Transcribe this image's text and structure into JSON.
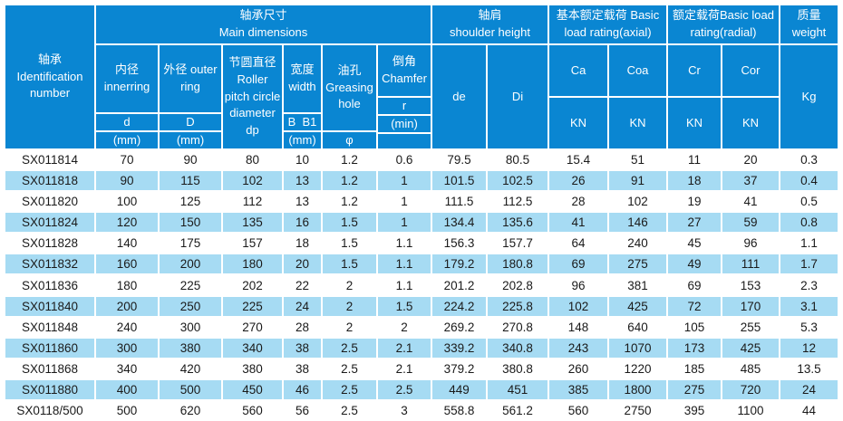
{
  "colors": {
    "header_blue": "#0a86d2",
    "stripe_blue": "#a6dbf3",
    "body_text": "#1a1a1a"
  },
  "header": {
    "id_column": "轴承 Identification number",
    "groups": {
      "main_zh": "轴承尺寸",
      "main_en": "Main dimensions",
      "shoulder_zh": "轴肩",
      "shoulder_en": "shoulder height",
      "axial": "基本额定载荷 Basic load rating(axial)",
      "radial": "额定载荷Basic load rating(radial)",
      "weight_zh": "质量",
      "weight_en": "weight"
    },
    "columns": {
      "inner_name": "内径 innerring",
      "inner_symbol": "d",
      "inner_unit": "(mm)",
      "outer_name": "外径 outer ring",
      "outer_symbol": "D",
      "outer_unit": "(mm)",
      "pitch_name": "节圆直径 Roller pitch circle diameter dp",
      "width_name": "宽度 width",
      "width_symbol": "B  B1",
      "width_unit": "(mm)",
      "grease_name": "油孔 Greasing hole",
      "grease_symbol": "φ",
      "chamfer_name": "倒角 Chamfer",
      "chamfer_symbol": "r",
      "chamfer_unit": "(min)",
      "de": "de",
      "di": "Di",
      "ca_symbol": "Ca",
      "ca_unit": "KN",
      "coa_symbol": "Coa",
      "coa_unit": "KN",
      "cr_symbol": "Cr",
      "cr_unit": "KN",
      "cor_symbol": "Cor",
      "cor_unit": "KN",
      "kg": "Kg"
    }
  },
  "rows": [
    [
      "SX011814",
      "70",
      "90",
      "80",
      "10",
      "1.2",
      "0.6",
      "79.5",
      "80.5",
      "15.4",
      "51",
      "11",
      "20",
      "0.3"
    ],
    [
      "SX011818",
      "90",
      "115",
      "102",
      "13",
      "1.2",
      "1",
      "101.5",
      "102.5",
      "26",
      "91",
      "18",
      "37",
      "0.4"
    ],
    [
      "SX011820",
      "100",
      "125",
      "112",
      "13",
      "1.2",
      "1",
      "111.5",
      "112.5",
      "28",
      "102",
      "19",
      "41",
      "0.5"
    ],
    [
      "SX011824",
      "120",
      "150",
      "135",
      "16",
      "1.5",
      "1",
      "134.4",
      "135.6",
      "41",
      "146",
      "27",
      "59",
      "0.8"
    ],
    [
      "SX011828",
      "140",
      "175",
      "157",
      "18",
      "1.5",
      "1.1",
      "156.3",
      "157.7",
      "64",
      "240",
      "45",
      "96",
      "1.1"
    ],
    [
      "SX011832",
      "160",
      "200",
      "180",
      "20",
      "1.5",
      "1.1",
      "179.2",
      "180.8",
      "69",
      "275",
      "49",
      "111",
      "1.7"
    ],
    [
      "SX011836",
      "180",
      "225",
      "202",
      "22",
      "2",
      "1.1",
      "201.2",
      "202.8",
      "96",
      "381",
      "69",
      "153",
      "2.3"
    ],
    [
      "SX011840",
      "200",
      "250",
      "225",
      "24",
      "2",
      "1.5",
      "224.2",
      "225.8",
      "102",
      "425",
      "72",
      "170",
      "3.1"
    ],
    [
      "SX011848",
      "240",
      "300",
      "270",
      "28",
      "2",
      "2",
      "269.2",
      "270.8",
      "148",
      "640",
      "105",
      "255",
      "5.3"
    ],
    [
      "SX011860",
      "300",
      "380",
      "340",
      "38",
      "2.5",
      "2.1",
      "339.2",
      "340.8",
      "243",
      "1070",
      "173",
      "425",
      "12"
    ],
    [
      "SX011868",
      "340",
      "420",
      "380",
      "38",
      "2.5",
      "2.1",
      "379.2",
      "380.8",
      "260",
      "1220",
      "185",
      "485",
      "13.5"
    ],
    [
      "SX011880",
      "400",
      "500",
      "450",
      "46",
      "2.5",
      "2.5",
      "449",
      "451",
      "385",
      "1800",
      "275",
      "720",
      "24"
    ],
    [
      "SX0118/500",
      "500",
      "620",
      "560",
      "56",
      "2.5",
      "3",
      "558.8",
      "561.2",
      "560",
      "2750",
      "395",
      "1100",
      "44"
    ]
  ]
}
